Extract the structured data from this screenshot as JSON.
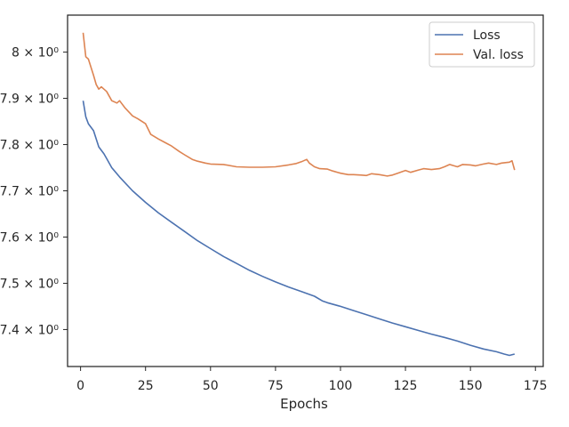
{
  "chart_data": {
    "type": "line",
    "title": "",
    "xlabel": "Epochs",
    "ylabel": "",
    "xlim": [
      -5,
      178
    ],
    "ylim": [
      7.32,
      8.08
    ],
    "x_ticks": [
      0,
      25,
      50,
      75,
      100,
      125,
      150,
      175
    ],
    "y_ticks": [
      {
        "value": 7.4,
        "label": "7.4 × 10⁰"
      },
      {
        "value": 7.5,
        "label": "7.5 × 10⁰"
      },
      {
        "value": 7.6,
        "label": "7.6 × 10⁰"
      },
      {
        "value": 7.7,
        "label": "7.7 × 10⁰"
      },
      {
        "value": 7.8,
        "label": "7.8 × 10⁰"
      },
      {
        "value": 7.9,
        "label": "7.9 × 10⁰"
      },
      {
        "value": 8.0,
        "label": "8 × 10⁰"
      }
    ],
    "grid": false,
    "legend_position": "top-right",
    "series": [
      {
        "name": "Loss",
        "color": "#4c72b0",
        "points": [
          [
            1,
            7.895
          ],
          [
            2,
            7.86
          ],
          [
            3,
            7.845
          ],
          [
            5,
            7.83
          ],
          [
            7,
            7.795
          ],
          [
            9,
            7.78
          ],
          [
            10,
            7.77
          ],
          [
            12,
            7.75
          ],
          [
            15,
            7.73
          ],
          [
            20,
            7.7
          ],
          [
            25,
            7.675
          ],
          [
            30,
            7.652
          ],
          [
            35,
            7.632
          ],
          [
            40,
            7.612
          ],
          [
            45,
            7.592
          ],
          [
            50,
            7.575
          ],
          [
            55,
            7.558
          ],
          [
            60,
            7.543
          ],
          [
            65,
            7.528
          ],
          [
            70,
            7.515
          ],
          [
            75,
            7.503
          ],
          [
            80,
            7.492
          ],
          [
            85,
            7.482
          ],
          [
            90,
            7.472
          ],
          [
            93,
            7.462
          ],
          [
            95,
            7.458
          ],
          [
            100,
            7.45
          ],
          [
            105,
            7.441
          ],
          [
            110,
            7.432
          ],
          [
            115,
            7.423
          ],
          [
            120,
            7.414
          ],
          [
            125,
            7.406
          ],
          [
            130,
            7.398
          ],
          [
            135,
            7.39
          ],
          [
            140,
            7.383
          ],
          [
            145,
            7.375
          ],
          [
            150,
            7.366
          ],
          [
            155,
            7.358
          ],
          [
            160,
            7.352
          ],
          [
            163,
            7.347
          ],
          [
            165,
            7.344
          ],
          [
            167,
            7.347
          ]
        ]
      },
      {
        "name": "Val. loss",
        "color": "#dd8452",
        "points": [
          [
            1,
            8.042
          ],
          [
            2,
            7.99
          ],
          [
            3,
            7.985
          ],
          [
            5,
            7.95
          ],
          [
            6,
            7.93
          ],
          [
            7,
            7.92
          ],
          [
            8,
            7.925
          ],
          [
            9,
            7.92
          ],
          [
            10,
            7.915
          ],
          [
            12,
            7.895
          ],
          [
            14,
            7.89
          ],
          [
            15,
            7.895
          ],
          [
            17,
            7.88
          ],
          [
            20,
            7.862
          ],
          [
            22,
            7.856
          ],
          [
            25,
            7.845
          ],
          [
            27,
            7.822
          ],
          [
            30,
            7.812
          ],
          [
            33,
            7.803
          ],
          [
            35,
            7.797
          ],
          [
            38,
            7.785
          ],
          [
            40,
            7.778
          ],
          [
            43,
            7.768
          ],
          [
            45,
            7.764
          ],
          [
            48,
            7.76
          ],
          [
            50,
            7.758
          ],
          [
            55,
            7.757
          ],
          [
            60,
            7.752
          ],
          [
            65,
            7.751
          ],
          [
            70,
            7.751
          ],
          [
            75,
            7.752
          ],
          [
            80,
            7.756
          ],
          [
            83,
            7.759
          ],
          [
            85,
            7.763
          ],
          [
            87,
            7.768
          ],
          [
            88,
            7.76
          ],
          [
            90,
            7.752
          ],
          [
            92,
            7.748
          ],
          [
            95,
            7.747
          ],
          [
            97,
            7.743
          ],
          [
            100,
            7.738
          ],
          [
            103,
            7.735
          ],
          [
            105,
            7.735
          ],
          [
            108,
            7.734
          ],
          [
            110,
            7.733
          ],
          [
            112,
            7.737
          ],
          [
            115,
            7.735
          ],
          [
            118,
            7.732
          ],
          [
            120,
            7.734
          ],
          [
            122,
            7.738
          ],
          [
            125,
            7.744
          ],
          [
            127,
            7.74
          ],
          [
            130,
            7.745
          ],
          [
            132,
            7.748
          ],
          [
            135,
            7.746
          ],
          [
            138,
            7.748
          ],
          [
            140,
            7.752
          ],
          [
            142,
            7.757
          ],
          [
            145,
            7.752
          ],
          [
            147,
            7.757
          ],
          [
            150,
            7.756
          ],
          [
            152,
            7.754
          ],
          [
            155,
            7.758
          ],
          [
            157,
            7.76
          ],
          [
            160,
            7.757
          ],
          [
            162,
            7.76
          ],
          [
            165,
            7.762
          ],
          [
            166,
            7.765
          ],
          [
            167,
            7.745
          ]
        ]
      }
    ]
  }
}
